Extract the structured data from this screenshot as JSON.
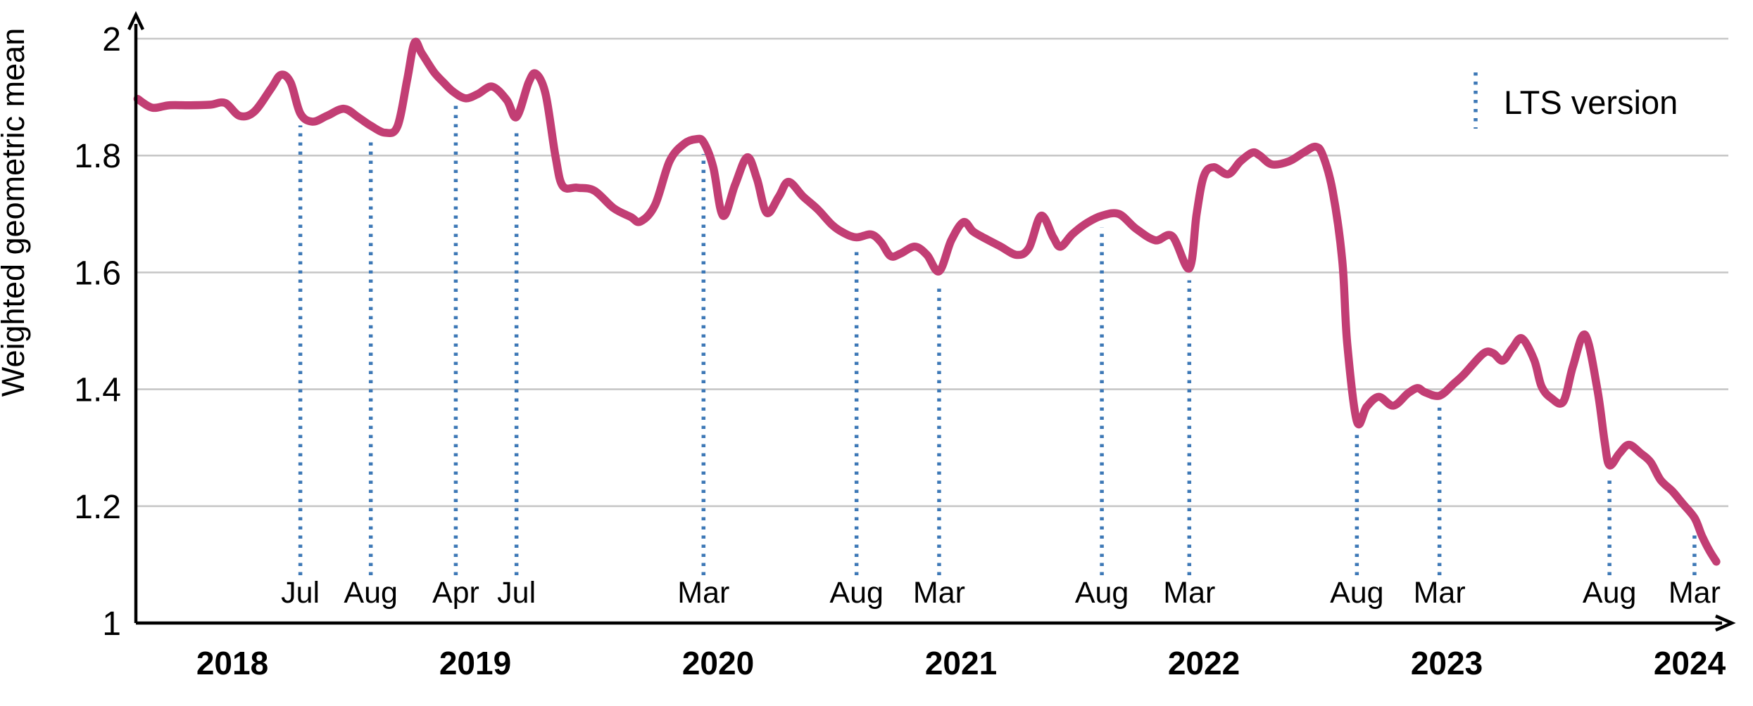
{
  "chart_data": {
    "type": "line",
    "title": "",
    "xlabel": "",
    "ylabel": "Weighted geometric mean",
    "ylim": [
      1,
      2
    ],
    "xlim_years": [
      2017.56,
      2024.25
    ],
    "grid": "horizontal-only",
    "gridline_values": [
      2,
      1.8,
      1.6,
      1.4,
      1.2
    ],
    "y_ticks": [
      {
        "v": 2,
        "label": "2"
      },
      {
        "v": 1.8,
        "label": "1.8"
      },
      {
        "v": 1.6,
        "label": "1.6"
      },
      {
        "v": 1.4,
        "label": "1.4"
      },
      {
        "v": 1.2,
        "label": "1.2"
      },
      {
        "v": 1,
        "label": "1"
      }
    ],
    "x_ticks": [
      {
        "year": 2018,
        "label": "2018"
      },
      {
        "year": 2019,
        "label": "2019"
      },
      {
        "year": 2020,
        "label": "2020"
      },
      {
        "year": 2021,
        "label": "2021"
      },
      {
        "year": 2022,
        "label": "2022"
      },
      {
        "year": 2023,
        "label": "2023"
      },
      {
        "year": 2024,
        "label": "2024"
      }
    ],
    "legend": {
      "label": "LTS version",
      "position": "top-right"
    },
    "colors": {
      "line": "#c23e74",
      "lts": "#3d78b6",
      "grid": "#c7c7c7",
      "axis": "#000000"
    },
    "series": [
      {
        "name": "Weighted geometric mean",
        "color": "#c23e74",
        "points": [
          [
            2017.61,
            1.897
          ],
          [
            2017.67,
            1.882
          ],
          [
            2017.74,
            1.886
          ],
          [
            2017.83,
            1.886
          ],
          [
            2017.91,
            1.887
          ],
          [
            2017.97,
            1.89
          ],
          [
            2018.03,
            1.868
          ],
          [
            2018.09,
            1.875
          ],
          [
            2018.16,
            1.915
          ],
          [
            2018.2,
            1.938
          ],
          [
            2018.24,
            1.925
          ],
          [
            2018.28,
            1.872
          ],
          [
            2018.33,
            1.858
          ],
          [
            2018.39,
            1.868
          ],
          [
            2018.46,
            1.88
          ],
          [
            2018.52,
            1.865
          ],
          [
            2018.57,
            1.851
          ],
          [
            2018.63,
            1.839
          ],
          [
            2018.68,
            1.85
          ],
          [
            2018.72,
            1.93
          ],
          [
            2018.75,
            1.993
          ],
          [
            2018.78,
            1.975
          ],
          [
            2018.83,
            1.943
          ],
          [
            2018.87,
            1.925
          ],
          [
            2018.91,
            1.909
          ],
          [
            2018.96,
            1.898
          ],
          [
            2019.01,
            1.905
          ],
          [
            2019.07,
            1.918
          ],
          [
            2019.13,
            1.895
          ],
          [
            2019.17,
            1.866
          ],
          [
            2019.22,
            1.925
          ],
          [
            2019.25,
            1.94
          ],
          [
            2019.29,
            1.905
          ],
          [
            2019.33,
            1.8
          ],
          [
            2019.36,
            1.748
          ],
          [
            2019.42,
            1.745
          ],
          [
            2019.49,
            1.74
          ],
          [
            2019.57,
            1.71
          ],
          [
            2019.64,
            1.695
          ],
          [
            2019.68,
            1.687
          ],
          [
            2019.74,
            1.715
          ],
          [
            2019.8,
            1.79
          ],
          [
            2019.86,
            1.82
          ],
          [
            2019.91,
            1.828
          ],
          [
            2019.94,
            1.823
          ],
          [
            2019.98,
            1.78
          ],
          [
            2020.02,
            1.697
          ],
          [
            2020.07,
            1.75
          ],
          [
            2020.12,
            1.797
          ],
          [
            2020.16,
            1.76
          ],
          [
            2020.2,
            1.702
          ],
          [
            2020.25,
            1.73
          ],
          [
            2020.29,
            1.755
          ],
          [
            2020.35,
            1.73
          ],
          [
            2020.41,
            1.708
          ],
          [
            2020.47,
            1.681
          ],
          [
            2020.52,
            1.667
          ],
          [
            2020.57,
            1.66
          ],
          [
            2020.63,
            1.665
          ],
          [
            2020.67,
            1.652
          ],
          [
            2020.71,
            1.628
          ],
          [
            2020.75,
            1.632
          ],
          [
            2020.81,
            1.644
          ],
          [
            2020.86,
            1.63
          ],
          [
            2020.91,
            1.602
          ],
          [
            2020.96,
            1.655
          ],
          [
            2021.01,
            1.686
          ],
          [
            2021.05,
            1.67
          ],
          [
            2021.1,
            1.658
          ],
          [
            2021.16,
            1.645
          ],
          [
            2021.23,
            1.63
          ],
          [
            2021.28,
            1.642
          ],
          [
            2021.33,
            1.697
          ],
          [
            2021.38,
            1.66
          ],
          [
            2021.41,
            1.644
          ],
          [
            2021.46,
            1.666
          ],
          [
            2021.52,
            1.685
          ],
          [
            2021.58,
            1.697
          ],
          [
            2021.65,
            1.7
          ],
          [
            2021.72,
            1.675
          ],
          [
            2021.8,
            1.655
          ],
          [
            2021.87,
            1.662
          ],
          [
            2021.94,
            1.607
          ],
          [
            2021.97,
            1.7
          ],
          [
            2022.0,
            1.765
          ],
          [
            2022.04,
            1.78
          ],
          [
            2022.1,
            1.768
          ],
          [
            2022.15,
            1.79
          ],
          [
            2022.2,
            1.805
          ],
          [
            2022.23,
            1.8
          ],
          [
            2022.28,
            1.785
          ],
          [
            2022.35,
            1.79
          ],
          [
            2022.41,
            1.805
          ],
          [
            2022.46,
            1.815
          ],
          [
            2022.49,
            1.8
          ],
          [
            2022.53,
            1.74
          ],
          [
            2022.57,
            1.62
          ],
          [
            2022.59,
            1.48
          ],
          [
            2022.63,
            1.345
          ],
          [
            2022.67,
            1.37
          ],
          [
            2022.72,
            1.387
          ],
          [
            2022.78,
            1.372
          ],
          [
            2022.84,
            1.393
          ],
          [
            2022.88,
            1.402
          ],
          [
            2022.91,
            1.395
          ],
          [
            2022.97,
            1.389
          ],
          [
            2023.03,
            1.41
          ],
          [
            2023.07,
            1.425
          ],
          [
            2023.15,
            1.461
          ],
          [
            2023.19,
            1.462
          ],
          [
            2023.23,
            1.449
          ],
          [
            2023.27,
            1.47
          ],
          [
            2023.31,
            1.487
          ],
          [
            2023.36,
            1.45
          ],
          [
            2023.39,
            1.405
          ],
          [
            2023.43,
            1.385
          ],
          [
            2023.48,
            1.379
          ],
          [
            2023.52,
            1.44
          ],
          [
            2023.57,
            1.493
          ],
          [
            2023.62,
            1.4
          ],
          [
            2023.65,
            1.31
          ],
          [
            2023.67,
            1.27
          ],
          [
            2023.71,
            1.29
          ],
          [
            2023.75,
            1.305
          ],
          [
            2023.8,
            1.29
          ],
          [
            2023.84,
            1.275
          ],
          [
            2023.88,
            1.245
          ],
          [
            2023.93,
            1.225
          ],
          [
            2023.97,
            1.205
          ],
          [
            2024.02,
            1.18
          ],
          [
            2024.05,
            1.15
          ],
          [
            2024.08,
            1.125
          ],
          [
            2024.11,
            1.105
          ]
        ]
      }
    ],
    "lts_markers": [
      {
        "label": "Jul",
        "x": 2018.28,
        "v": 1.872
      },
      {
        "label": "Aug",
        "x": 2018.57,
        "v": 1.851
      },
      {
        "label": "Apr",
        "x": 2018.92,
        "v": 1.909
      },
      {
        "label": "Jul",
        "x": 2019.17,
        "v": 1.866
      },
      {
        "label": "Mar",
        "x": 2019.94,
        "v": 1.823
      },
      {
        "label": "Aug",
        "x": 2020.57,
        "v": 1.66
      },
      {
        "label": "Mar",
        "x": 2020.91,
        "v": 1.602
      },
      {
        "label": "Aug",
        "x": 2021.58,
        "v": 1.697
      },
      {
        "label": "Mar",
        "x": 2021.94,
        "v": 1.607
      },
      {
        "label": "Aug",
        "x": 2022.63,
        "v": 1.345
      },
      {
        "label": "Mar",
        "x": 2022.97,
        "v": 1.389
      },
      {
        "label": "Aug",
        "x": 2023.67,
        "v": 1.27
      },
      {
        "label": "Mar",
        "x": 2024.02,
        "v": 1.18
      }
    ]
  }
}
